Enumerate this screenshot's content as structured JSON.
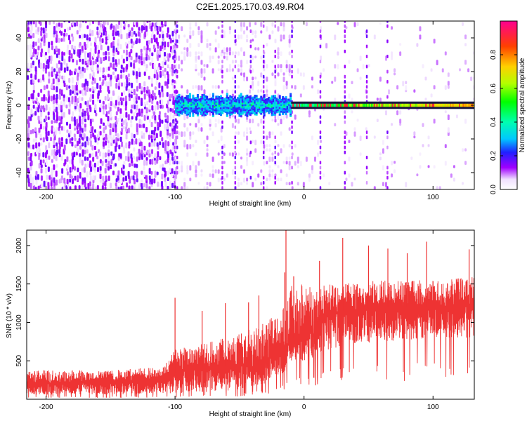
{
  "title": "C2E1.2025.170.03.49.R04",
  "chart_data": [
    {
      "type": "heatmap",
      "xlabel": "Height of straight line (km)",
      "ylabel": "Frequency (Hz)",
      "xlim": [
        -215,
        132
      ],
      "ylim": [
        -50,
        50
      ],
      "xticks": [
        -200,
        -100,
        0,
        100
      ],
      "yticks": [
        -40,
        -20,
        0,
        20,
        40
      ],
      "colorbar": {
        "label": "Normalized spectral amplitude",
        "range": [
          0.0,
          1.0
        ],
        "ticks": [
          0.0,
          0.2,
          0.4,
          0.6,
          0.8
        ]
      },
      "features": {
        "noise_region_x": [
          -215,
          -100
        ],
        "burst_x": [
          -100,
          -10
        ],
        "burst_freq_halfwidth_hz": 6,
        "steady_band_x": [
          -10,
          132
        ],
        "steady_band_center_hz": 0,
        "steady_band_peak_amplitude": 0.9
      }
    },
    {
      "type": "line",
      "xlabel": "Height of straight line (km)",
      "ylabel": "SNR (10 * v/v)",
      "xlim": [
        -215,
        132
      ],
      "ylim": [
        0,
        2200
      ],
      "xticks": [
        -200,
        -100,
        0,
        100
      ],
      "yticks": [
        500,
        1000,
        1500,
        2000
      ],
      "color": "#ee3333",
      "envelope": {
        "x": [
          -215,
          -150,
          -110,
          -100,
          -80,
          -50,
          -30,
          -15,
          -10,
          0,
          10,
          15,
          30,
          60,
          100,
          132
        ],
        "base": [
          60,
          60,
          70,
          80,
          90,
          120,
          200,
          350,
          500,
          500,
          550,
          600,
          700,
          750,
          800,
          800
        ],
        "mid": [
          200,
          220,
          250,
          350,
          400,
          450,
          500,
          650,
          800,
          800,
          1000,
          1100,
          1150,
          1200,
          1200,
          1250
        ],
        "top": [
          380,
          380,
          420,
          650,
          720,
          850,
          1000,
          1200,
          1500,
          1500,
          1450,
          1500,
          1500,
          1550,
          1550,
          1600
        ]
      },
      "spikes": [
        {
          "x": -100,
          "y": 1320
        },
        {
          "x": -79,
          "y": 1150
        },
        {
          "x": -61,
          "y": 1250
        },
        {
          "x": -43,
          "y": 1260
        },
        {
          "x": -35,
          "y": 1350
        },
        {
          "x": -15,
          "y": 1650
        },
        {
          "x": -14,
          "y": 2200
        },
        {
          "x": -8,
          "y": 1600
        },
        {
          "x": 12,
          "y": 1800
        },
        {
          "x": 30,
          "y": 2100
        },
        {
          "x": 50,
          "y": 2000
        },
        {
          "x": 65,
          "y": 1960
        },
        {
          "x": 80,
          "y": 1900
        },
        {
          "x": 95,
          "y": 2050
        },
        {
          "x": 128,
          "y": 1950
        }
      ]
    }
  ]
}
